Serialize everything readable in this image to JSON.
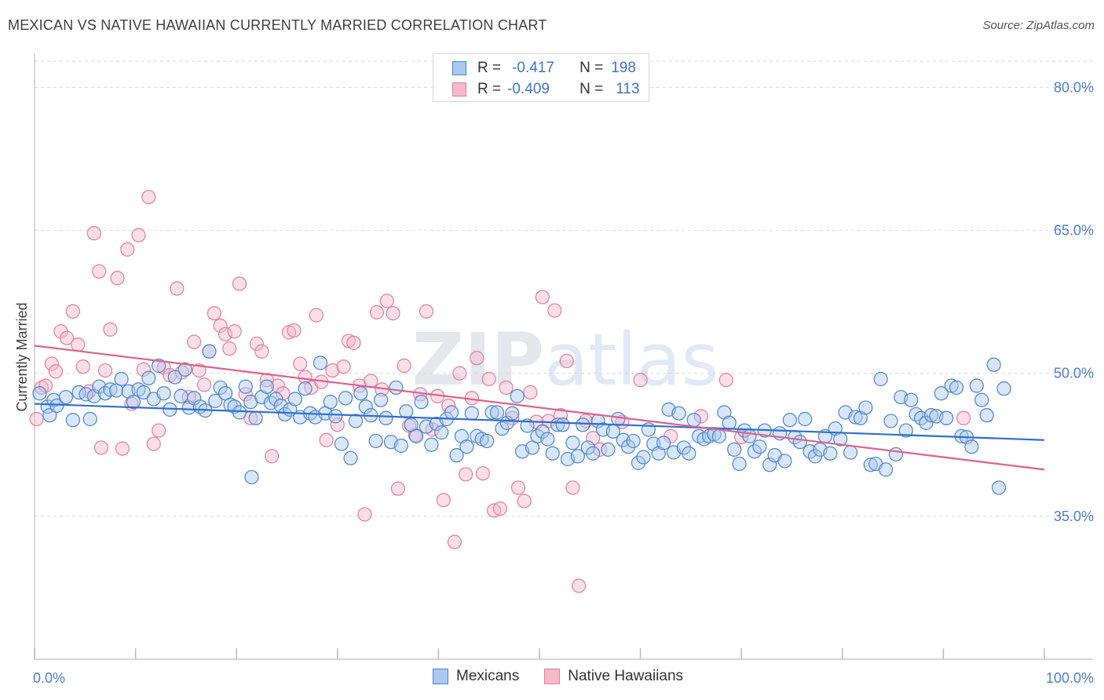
{
  "title": "MEXICAN VS NATIVE HAWAIIAN CURRENTLY MARRIED CORRELATION CHART",
  "source": "Source: ZipAtlas.com",
  "watermark": "ZIPatlas",
  "legend_stats": {
    "mexicans": {
      "r_label": "R =",
      "r_value": "-0.417",
      "n_label": "N =",
      "n_value": "198"
    },
    "native_hawaiians": {
      "r_label": "R =",
      "r_value": "-0.409",
      "n_label": "N =",
      "n_value": "113"
    }
  },
  "colors": {
    "blue_fill": "#aac8f0",
    "blue_edge": "#4a86d4",
    "blue_line": "#2f6fcf",
    "pink_fill": "#f6b8cb",
    "pink_edge": "#e57d9e",
    "pink_line": "#e0628c",
    "tick_label": "#4a7fd1",
    "grid": "#d9d9d9"
  },
  "chart_data": {
    "type": "scatter",
    "title": "MEXICAN VS NATIVE HAWAIIAN CURRENTLY MARRIED CORRELATION CHART",
    "xlabel": "",
    "ylabel": "Currently Married",
    "xlim": [
      0,
      100
    ],
    "ylim": [
      20,
      83
    ],
    "x_tick_labels": [
      "0.0%",
      "100.0%"
    ],
    "y_ticks": [
      35,
      50,
      65,
      80
    ],
    "y_tick_labels": [
      "35.0%",
      "50.0%",
      "65.0%",
      "80.0%"
    ],
    "grid": "horizontal dashed",
    "legend_placement": "top-center and bottom",
    "series": [
      {
        "name": "Mexicans",
        "color": "blue",
        "trend": {
          "x": [
            0,
            100
          ],
          "y": [
            46.8,
            43.0
          ]
        },
        "points": [
          [
            0.5,
            47.9
          ],
          [
            1.3,
            46.5
          ],
          [
            1.5,
            45.6
          ],
          [
            1.9,
            47.2
          ],
          [
            2.2,
            46.6
          ],
          [
            3.1,
            47.5
          ],
          [
            3.8,
            45.1
          ],
          [
            4.4,
            48.0
          ],
          [
            5.1,
            47.8
          ],
          [
            5.5,
            45.2
          ],
          [
            5.9,
            47.6
          ],
          [
            6.4,
            48.6
          ],
          [
            7.0,
            47.9
          ],
          [
            7.5,
            48.3
          ],
          [
            8.1,
            48.2
          ],
          [
            8.6,
            49.4
          ],
          [
            9.3,
            48.1
          ],
          [
            9.8,
            47.0
          ],
          [
            10.3,
            48.3
          ],
          [
            10.8,
            48.0
          ],
          [
            11.3,
            49.5
          ],
          [
            11.8,
            47.3
          ],
          [
            12.3,
            50.8
          ],
          [
            12.8,
            47.9
          ],
          [
            13.4,
            46.2
          ],
          [
            13.9,
            49.6
          ],
          [
            14.5,
            47.6
          ],
          [
            14.9,
            50.4
          ],
          [
            15.3,
            46.4
          ],
          [
            15.8,
            47.4
          ],
          [
            16.4,
            46.5
          ],
          [
            16.9,
            46.1
          ],
          [
            17.3,
            52.3
          ],
          [
            17.9,
            47.1
          ],
          [
            18.4,
            48.5
          ],
          [
            18.9,
            47.9
          ],
          [
            19.4,
            46.7
          ],
          [
            19.8,
            46.5
          ],
          [
            20.3,
            45.9
          ],
          [
            20.9,
            48.6
          ],
          [
            21.4,
            47.0
          ],
          [
            21.5,
            39.1
          ],
          [
            21.9,
            45.3
          ],
          [
            22.5,
            47.5
          ],
          [
            23.0,
            48.6
          ],
          [
            23.4,
            46.9
          ],
          [
            23.9,
            47.3
          ],
          [
            24.4,
            46.6
          ],
          [
            24.8,
            45.7
          ],
          [
            25.3,
            46.2
          ],
          [
            25.8,
            47.3
          ],
          [
            26.3,
            45.4
          ],
          [
            26.8,
            48.4
          ],
          [
            27.3,
            45.8
          ],
          [
            27.8,
            45.4
          ],
          [
            28.3,
            51.1
          ],
          [
            28.8,
            45.8
          ],
          [
            29.3,
            47.0
          ],
          [
            29.8,
            45.5
          ],
          [
            30.4,
            42.6
          ],
          [
            30.8,
            47.4
          ],
          [
            31.3,
            41.1
          ],
          [
            31.8,
            45.0
          ],
          [
            32.3,
            47.9
          ],
          [
            32.8,
            46.5
          ],
          [
            33.3,
            45.6
          ],
          [
            33.8,
            42.9
          ],
          [
            34.3,
            47.2
          ],
          [
            34.8,
            45.3
          ],
          [
            35.3,
            42.8
          ],
          [
            35.8,
            48.5
          ],
          [
            36.3,
            42.4
          ],
          [
            36.8,
            46.0
          ],
          [
            37.3,
            44.6
          ],
          [
            37.8,
            43.4
          ],
          [
            38.3,
            47.0
          ],
          [
            38.8,
            44.4
          ],
          [
            39.3,
            42.5
          ],
          [
            39.8,
            44.7
          ],
          [
            40.3,
            43.8
          ],
          [
            40.8,
            45.2
          ],
          [
            41.3,
            45.9
          ],
          [
            41.8,
            41.4
          ],
          [
            42.3,
            43.4
          ],
          [
            42.8,
            42.3
          ],
          [
            43.3,
            45.8
          ],
          [
            43.8,
            43.4
          ],
          [
            44.3,
            43.1
          ],
          [
            44.8,
            42.9
          ],
          [
            45.3,
            45.9
          ],
          [
            45.8,
            45.9
          ],
          [
            46.3,
            44.2
          ],
          [
            46.8,
            44.8
          ],
          [
            47.3,
            45.8
          ],
          [
            47.8,
            47.6
          ],
          [
            48.3,
            41.8
          ],
          [
            48.8,
            44.5
          ],
          [
            49.3,
            42.2
          ],
          [
            49.8,
            43.4
          ],
          [
            50.3,
            43.9
          ],
          [
            50.8,
            43.1
          ],
          [
            51.3,
            41.6
          ],
          [
            51.8,
            44.6
          ],
          [
            52.3,
            44.6
          ],
          [
            52.8,
            41.0
          ],
          [
            53.3,
            42.7
          ],
          [
            53.8,
            41.3
          ],
          [
            54.3,
            44.6
          ],
          [
            54.8,
            42.2
          ],
          [
            55.3,
            41.6
          ],
          [
            55.8,
            45.0
          ],
          [
            56.3,
            44.1
          ],
          [
            56.8,
            42.0
          ],
          [
            57.3,
            43.9
          ],
          [
            57.8,
            45.2
          ],
          [
            58.3,
            43.0
          ],
          [
            58.8,
            42.3
          ],
          [
            59.3,
            42.9
          ],
          [
            59.8,
            40.6
          ],
          [
            60.3,
            41.2
          ],
          [
            60.8,
            44.1
          ],
          [
            61.3,
            42.6
          ],
          [
            61.8,
            41.6
          ],
          [
            62.3,
            42.7
          ],
          [
            62.8,
            46.2
          ],
          [
            63.3,
            41.7
          ],
          [
            63.8,
            45.8
          ],
          [
            64.3,
            42.2
          ],
          [
            64.8,
            41.6
          ],
          [
            65.3,
            45.1
          ],
          [
            65.8,
            43.4
          ],
          [
            66.3,
            43.1
          ],
          [
            66.8,
            43.4
          ],
          [
            67.3,
            43.6
          ],
          [
            67.8,
            43.4
          ],
          [
            68.3,
            45.9
          ],
          [
            68.8,
            44.8
          ],
          [
            69.3,
            42.0
          ],
          [
            69.8,
            40.5
          ],
          [
            70.3,
            44.0
          ],
          [
            70.8,
            43.4
          ],
          [
            71.3,
            41.8
          ],
          [
            71.8,
            42.3
          ],
          [
            72.3,
            44.0
          ],
          [
            72.8,
            40.4
          ],
          [
            73.3,
            41.4
          ],
          [
            73.8,
            43.7
          ],
          [
            74.3,
            40.8
          ],
          [
            74.8,
            45.1
          ],
          [
            75.3,
            43.3
          ],
          [
            75.8,
            42.8
          ],
          [
            76.3,
            45.2
          ],
          [
            76.8,
            41.8
          ],
          [
            77.3,
            41.3
          ],
          [
            77.8,
            42.0
          ],
          [
            78.3,
            43.4
          ],
          [
            78.8,
            41.6
          ],
          [
            79.3,
            44.2
          ],
          [
            79.8,
            43.1
          ],
          [
            80.3,
            45.9
          ],
          [
            80.8,
            41.7
          ],
          [
            81.3,
            45.4
          ],
          [
            81.8,
            45.3
          ],
          [
            82.3,
            46.4
          ],
          [
            82.8,
            40.4
          ],
          [
            83.3,
            40.5
          ],
          [
            83.8,
            49.4
          ],
          [
            84.3,
            39.9
          ],
          [
            84.8,
            45.0
          ],
          [
            85.3,
            41.5
          ],
          [
            85.8,
            47.5
          ],
          [
            86.3,
            44.0
          ],
          [
            86.8,
            47.2
          ],
          [
            87.3,
            45.7
          ],
          [
            87.8,
            45.3
          ],
          [
            88.3,
            44.8
          ],
          [
            88.8,
            45.6
          ],
          [
            89.3,
            45.5
          ],
          [
            89.8,
            47.9
          ],
          [
            90.3,
            45.3
          ],
          [
            90.8,
            48.7
          ],
          [
            91.3,
            48.5
          ],
          [
            91.8,
            43.4
          ],
          [
            92.3,
            43.3
          ],
          [
            92.8,
            42.3
          ],
          [
            93.3,
            48.7
          ],
          [
            93.8,
            47.2
          ],
          [
            94.3,
            45.6
          ],
          [
            95.0,
            50.9
          ],
          [
            96.0,
            48.4
          ],
          [
            95.5,
            38.0
          ]
        ]
      },
      {
        "name": "Native Hawaiians",
        "color": "pink",
        "trend": {
          "x": [
            0,
            100
          ],
          "y": [
            52.9,
            39.9
          ]
        },
        "points": [
          [
            0.2,
            45.2
          ],
          [
            0.7,
            48.5
          ],
          [
            1.1,
            48.7
          ],
          [
            1.7,
            51.0
          ],
          [
            2.1,
            50.2
          ],
          [
            2.6,
            54.4
          ],
          [
            3.2,
            53.7
          ],
          [
            3.8,
            56.5
          ],
          [
            4.3,
            53.0
          ],
          [
            4.8,
            50.7
          ],
          [
            5.4,
            48.1
          ],
          [
            5.9,
            64.7
          ],
          [
            6.4,
            60.7
          ],
          [
            6.6,
            42.2
          ],
          [
            7.0,
            50.3
          ],
          [
            7.5,
            54.6
          ],
          [
            8.2,
            60.0
          ],
          [
            8.7,
            42.1
          ],
          [
            9.2,
            63.0
          ],
          [
            9.6,
            46.8
          ],
          [
            10.3,
            64.5
          ],
          [
            10.8,
            50.4
          ],
          [
            11.3,
            68.5
          ],
          [
            11.8,
            42.6
          ],
          [
            12.3,
            44.0
          ],
          [
            12.8,
            50.6
          ],
          [
            13.4,
            49.8
          ],
          [
            14.1,
            58.9
          ],
          [
            14.6,
            50.1
          ],
          [
            15.3,
            47.5
          ],
          [
            15.8,
            53.3
          ],
          [
            16.3,
            50.3
          ],
          [
            16.8,
            48.8
          ],
          [
            17.3,
            52.3
          ],
          [
            17.8,
            56.3
          ],
          [
            18.4,
            55.0
          ],
          [
            18.9,
            54.1
          ],
          [
            19.3,
            52.6
          ],
          [
            19.8,
            54.4
          ],
          [
            20.3,
            59.4
          ],
          [
            20.9,
            47.8
          ],
          [
            21.4,
            45.3
          ],
          [
            22.0,
            53.1
          ],
          [
            22.5,
            52.3
          ],
          [
            23.0,
            49.3
          ],
          [
            23.5,
            41.3
          ],
          [
            24.1,
            48.7
          ],
          [
            24.6,
            47.9
          ],
          [
            25.2,
            54.3
          ],
          [
            25.7,
            54.5
          ],
          [
            26.3,
            51.0
          ],
          [
            26.8,
            49.6
          ],
          [
            27.4,
            48.5
          ],
          [
            27.9,
            56.1
          ],
          [
            28.4,
            49.1
          ],
          [
            28.9,
            43.0
          ],
          [
            29.5,
            50.3
          ],
          [
            30.0,
            44.6
          ],
          [
            30.6,
            50.7
          ],
          [
            31.1,
            53.4
          ],
          [
            31.6,
            53.2
          ],
          [
            32.2,
            48.7
          ],
          [
            32.7,
            35.2
          ],
          [
            33.3,
            49.2
          ],
          [
            33.9,
            56.4
          ],
          [
            34.4,
            48.3
          ],
          [
            34.9,
            57.6
          ],
          [
            35.5,
            56.3
          ],
          [
            36.0,
            37.9
          ],
          [
            36.6,
            50.8
          ],
          [
            37.1,
            44.5
          ],
          [
            37.7,
            43.5
          ],
          [
            38.2,
            47.8
          ],
          [
            38.8,
            56.5
          ],
          [
            39.4,
            44.1
          ],
          [
            39.9,
            47.6
          ],
          [
            40.5,
            36.7
          ],
          [
            41.0,
            46.6
          ],
          [
            41.6,
            32.3
          ],
          [
            42.1,
            50.0
          ],
          [
            42.7,
            39.4
          ],
          [
            43.3,
            47.4
          ],
          [
            43.8,
            51.6
          ],
          [
            44.4,
            39.5
          ],
          [
            45.0,
            49.4
          ],
          [
            45.5,
            35.6
          ],
          [
            46.1,
            35.8
          ],
          [
            46.7,
            48.5
          ],
          [
            47.3,
            45.3
          ],
          [
            47.9,
            38.0
          ],
          [
            48.5,
            36.6
          ],
          [
            49.1,
            48.0
          ],
          [
            49.7,
            44.9
          ],
          [
            50.3,
            58.0
          ],
          [
            50.9,
            45.0
          ],
          [
            51.5,
            56.6
          ],
          [
            52.1,
            45.6
          ],
          [
            52.7,
            51.3
          ],
          [
            53.3,
            38.0
          ],
          [
            53.9,
            27.7
          ],
          [
            54.6,
            45.0
          ],
          [
            55.3,
            43.2
          ],
          [
            56.0,
            42.0
          ],
          [
            58.2,
            44.9
          ],
          [
            60.0,
            49.3
          ],
          [
            63.0,
            43.4
          ],
          [
            66.0,
            45.5
          ],
          [
            68.5,
            49.3
          ],
          [
            70.0,
            43.3
          ],
          [
            92.0,
            45.3
          ]
        ]
      }
    ]
  }
}
